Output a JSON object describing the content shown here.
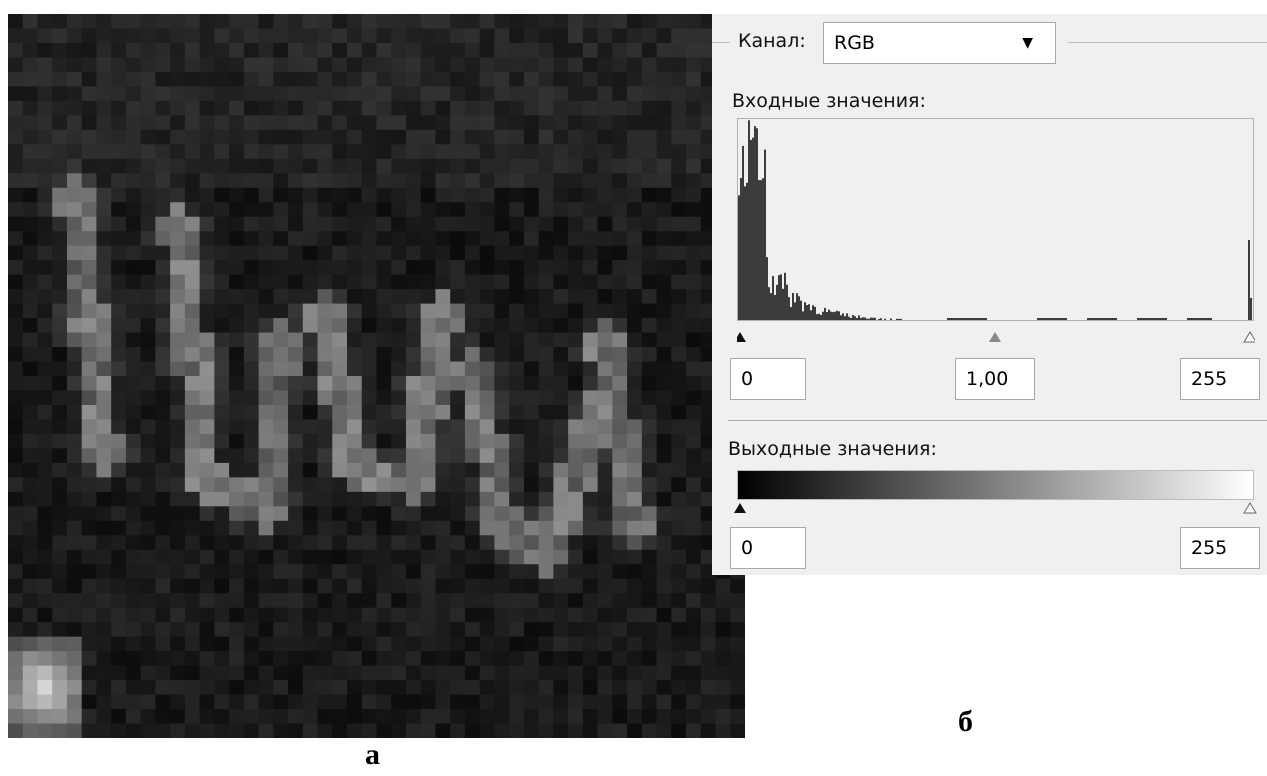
{
  "channel_label": "Канал:",
  "channel_value": "RGB",
  "input_label": "Входные значения:",
  "input_values": {
    "black": "0",
    "gamma": "1,00",
    "white": "255"
  },
  "output_label": "Выходные значения:",
  "output_values": {
    "black": "0",
    "white": "255"
  },
  "captions": {
    "left": "а",
    "right": "б"
  }
}
